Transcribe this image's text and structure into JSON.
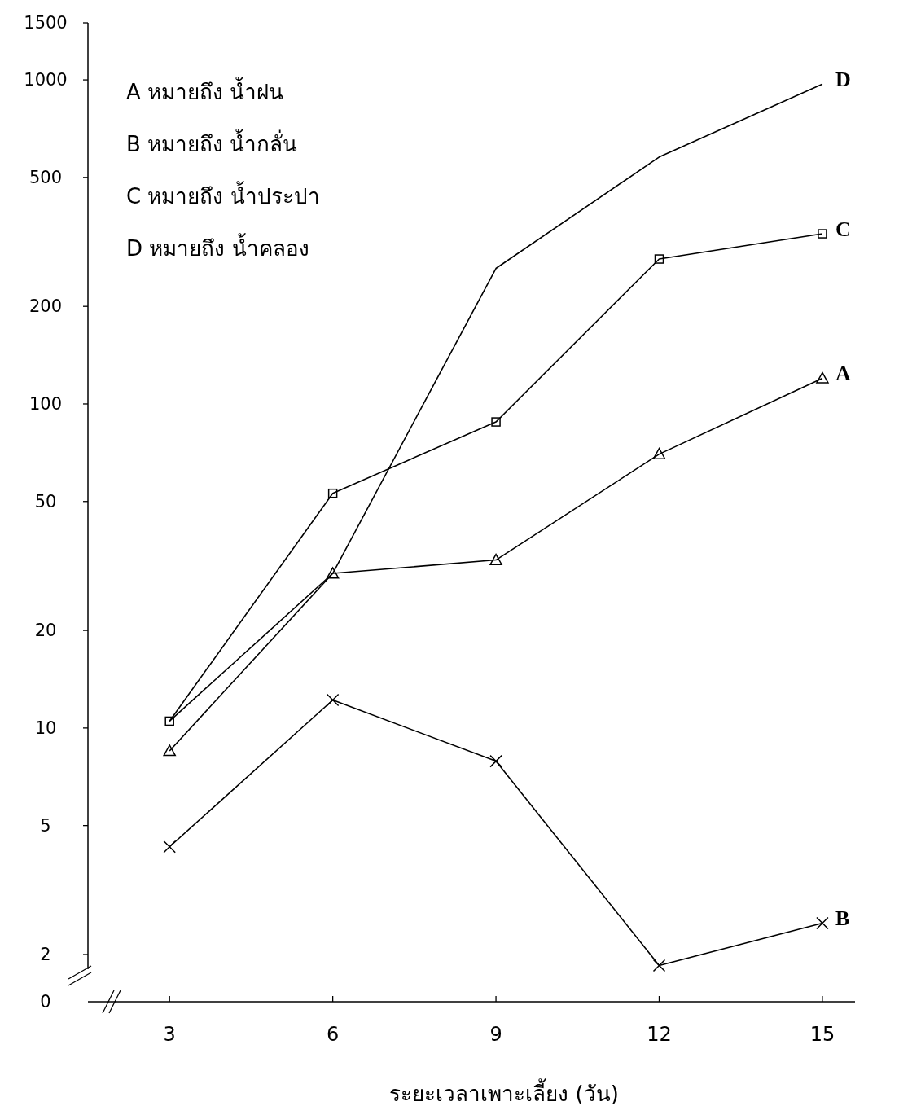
{
  "chart_data": {
    "type": "line",
    "xlabel": "ระยะเวลาเพาะเลี้ยง  (วัน)",
    "x": [
      3,
      6,
      9,
      12,
      15
    ],
    "xlim": [
      1.5,
      15.6
    ],
    "xticks": [
      3,
      6,
      9,
      12,
      15
    ],
    "ylim": [
      0,
      1500
    ],
    "yticks": [
      0,
      2,
      5,
      10,
      20,
      50,
      100,
      200,
      500,
      1000,
      1500
    ],
    "log": "y",
    "grid": false,
    "line_style": "solid",
    "series": [
      {
        "name": "A",
        "color": "#000000",
        "marker": "triangle",
        "values": [
          8.5,
          30,
          33,
          70,
          120
        ]
      },
      {
        "name": "B",
        "color": "#000000",
        "marker": "cross",
        "values": [
          4.3,
          12.2,
          7.9,
          1.85,
          2.5
        ]
      },
      {
        "name": "C",
        "color": "#000000",
        "marker": "square",
        "values": [
          10.5,
          53,
          88,
          280,
          335
        ]
      },
      {
        "name": "D",
        "color": "#000000",
        "marker": "none",
        "values": [
          10.5,
          30,
          262,
          578,
          970
        ]
      }
    ],
    "annotations": [
      "A   หมายถึง   น้ำฝน",
      "B   หมายถึง   น้ำกลั่น",
      "C   หมายถึง   น้ำประปา",
      "D   หมายถึง   น้ำคลอง"
    ]
  }
}
